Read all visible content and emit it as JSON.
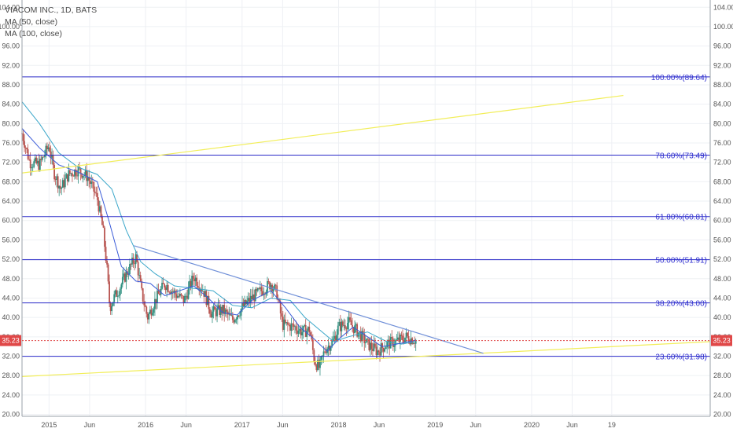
{
  "chart_data": {
    "type": "candlestick",
    "legend": {
      "symbol": "VIACOM INC., 1D, BATS",
      "ma50": "MA (50, close)",
      "ma100": "MA (100, close)"
    },
    "y_ticks": [
      "104.00",
      "100.00",
      "96.00",
      "92.00",
      "88.00",
      "84.00",
      "80.00",
      "76.00",
      "72.00",
      "68.00",
      "64.00",
      "60.00",
      "56.00",
      "52.00",
      "48.00",
      "44.00",
      "40.00",
      "36.00",
      "32.00",
      "28.00",
      "24.00",
      "20.00"
    ],
    "y_tick_values": [
      104,
      100,
      96,
      92,
      88,
      84,
      80,
      76,
      72,
      68,
      64,
      60,
      56,
      52,
      48,
      44,
      40,
      36,
      32,
      28,
      24,
      20
    ],
    "ylim": [
      19.6,
      105.5
    ],
    "x_ticks": [
      {
        "label": "2015",
        "t": 2015.0
      },
      {
        "label": "Jun",
        "t": 2015.42
      },
      {
        "label": "2016",
        "t": 2016.0
      },
      {
        "label": "Jun",
        "t": 2016.42
      },
      {
        "label": "2017",
        "t": 2017.0
      },
      {
        "label": "Jun",
        "t": 2017.42
      },
      {
        "label": "2018",
        "t": 2018.0
      },
      {
        "label": "Jun",
        "t": 2018.42
      },
      {
        "label": "2019",
        "t": 2019.0
      },
      {
        "label": "Jun",
        "t": 2019.42
      },
      {
        "label": "2020",
        "t": 2020.0
      },
      {
        "label": "Jun",
        "t": 2020.42
      },
      {
        "label": "19",
        "t": 2020.83
      }
    ],
    "xlim": [
      2014.72,
      2021.85
    ],
    "last_price": "35.23",
    "last_price_value": 35.23,
    "fib_levels": [
      {
        "label": "100.00%(89.64)",
        "value": 89.64
      },
      {
        "label": "78.60%(73.49)",
        "value": 73.49
      },
      {
        "label": "61.80%(60.81)",
        "value": 60.81
      },
      {
        "label": "50.00%(51.91)",
        "value": 51.91
      },
      {
        "label": "38.20%(43.00)",
        "value": 43.0
      },
      {
        "label": "23.60%(31.98)",
        "value": 31.98
      }
    ],
    "trendlines": [
      {
        "color": "#f2ee5a",
        "from": [
          2014.72,
          69.8
        ],
        "to": [
          2020.95,
          85.8
        ]
      },
      {
        "color": "#f2ee5a",
        "from": [
          2014.72,
          27.8
        ],
        "to": [
          2021.85,
          35.0
        ]
      },
      {
        "color": "#6f8fd8",
        "from": [
          2015.88,
          54.8
        ],
        "to": [
          2019.5,
          32.6
        ]
      }
    ],
    "price_anchors": [
      [
        2014.72,
        78.0
      ],
      [
        2014.8,
        72.0
      ],
      [
        2014.9,
        71.5
      ],
      [
        2015.0,
        75.5
      ],
      [
        2015.05,
        70.0
      ],
      [
        2015.12,
        66.5
      ],
      [
        2015.2,
        69.5
      ],
      [
        2015.3,
        70.5
      ],
      [
        2015.4,
        69.0
      ],
      [
        2015.5,
        64.5
      ],
      [
        2015.56,
        58.0
      ],
      [
        2015.6,
        50.0
      ],
      [
        2015.63,
        42.0
      ],
      [
        2015.67,
        44.0
      ],
      [
        2015.73,
        46.0
      ],
      [
        2015.8,
        49.0
      ],
      [
        2015.9,
        52.5
      ],
      [
        2015.96,
        45.0
      ],
      [
        2016.02,
        40.0
      ],
      [
        2016.1,
        43.5
      ],
      [
        2016.2,
        47.0
      ],
      [
        2016.3,
        45.0
      ],
      [
        2016.4,
        43.5
      ],
      [
        2016.5,
        48.5
      ],
      [
        2016.6,
        45.5
      ],
      [
        2016.68,
        41.0
      ],
      [
        2016.8,
        41.5
      ],
      [
        2016.9,
        39.5
      ],
      [
        2017.0,
        42.0
      ],
      [
        2017.1,
        44.0
      ],
      [
        2017.2,
        45.5
      ],
      [
        2017.3,
        47.0
      ],
      [
        2017.36,
        45.0
      ],
      [
        2017.42,
        38.5
      ],
      [
        2017.55,
        38.0
      ],
      [
        2017.62,
        37.0
      ],
      [
        2017.7,
        37.5
      ],
      [
        2017.75,
        31.0
      ],
      [
        2017.8,
        29.5
      ],
      [
        2017.86,
        33.5
      ],
      [
        2017.94,
        35.0
      ],
      [
        2018.0,
        38.0
      ],
      [
        2018.1,
        39.0
      ],
      [
        2018.2,
        37.0
      ],
      [
        2018.3,
        34.5
      ],
      [
        2018.4,
        33.0
      ],
      [
        2018.5,
        34.5
      ],
      [
        2018.6,
        35.0
      ],
      [
        2018.7,
        36.0
      ],
      [
        2018.8,
        35.3
      ]
    ],
    "ma50_points": [
      [
        2014.72,
        79.0
      ],
      [
        2014.9,
        75.0
      ],
      [
        2015.1,
        71.5
      ],
      [
        2015.3,
        70.0
      ],
      [
        2015.5,
        68.0
      ],
      [
        2015.62,
        60.0
      ],
      [
        2015.75,
        50.5
      ],
      [
        2015.9,
        47.5
      ],
      [
        2016.05,
        47.0
      ],
      [
        2016.2,
        44.5
      ],
      [
        2016.35,
        45.5
      ],
      [
        2016.5,
        46.5
      ],
      [
        2016.65,
        44.0
      ],
      [
        2016.8,
        41.0
      ],
      [
        2016.95,
        40.5
      ],
      [
        2017.1,
        43.5
      ],
      [
        2017.3,
        45.5
      ],
      [
        2017.45,
        42.0
      ],
      [
        2017.6,
        38.0
      ],
      [
        2017.75,
        35.5
      ],
      [
        2017.88,
        33.0
      ],
      [
        2018.0,
        35.5
      ],
      [
        2018.15,
        38.0
      ],
      [
        2018.3,
        36.0
      ],
      [
        2018.45,
        34.0
      ],
      [
        2018.6,
        34.5
      ],
      [
        2018.8,
        35.3
      ]
    ],
    "ma100_points": [
      [
        2014.72,
        84.5
      ],
      [
        2014.9,
        80.0
      ],
      [
        2015.1,
        74.0
      ],
      [
        2015.3,
        71.0
      ],
      [
        2015.5,
        69.5
      ],
      [
        2015.65,
        66.5
      ],
      [
        2015.8,
        58.0
      ],
      [
        2015.95,
        51.5
      ],
      [
        2016.1,
        49.0
      ],
      [
        2016.3,
        46.5
      ],
      [
        2016.5,
        46.0
      ],
      [
        2016.7,
        45.5
      ],
      [
        2016.9,
        42.5
      ],
      [
        2017.1,
        42.0
      ],
      [
        2017.3,
        44.0
      ],
      [
        2017.5,
        43.5
      ],
      [
        2017.65,
        40.0
      ],
      [
        2017.8,
        37.5
      ],
      [
        2017.95,
        35.0
      ],
      [
        2018.1,
        36.0
      ],
      [
        2018.3,
        37.0
      ],
      [
        2018.5,
        35.0
      ],
      [
        2018.65,
        34.5
      ],
      [
        2018.8,
        35.0
      ]
    ],
    "colors": {
      "up": "#2f8f7f",
      "down": "#b85450",
      "fib": "#2a2ac8",
      "ma50": "#3a5bd8",
      "ma100": "#3aa6c9",
      "price_tag": "#e04848",
      "grid": "#eef0f4"
    },
    "grid": true
  }
}
